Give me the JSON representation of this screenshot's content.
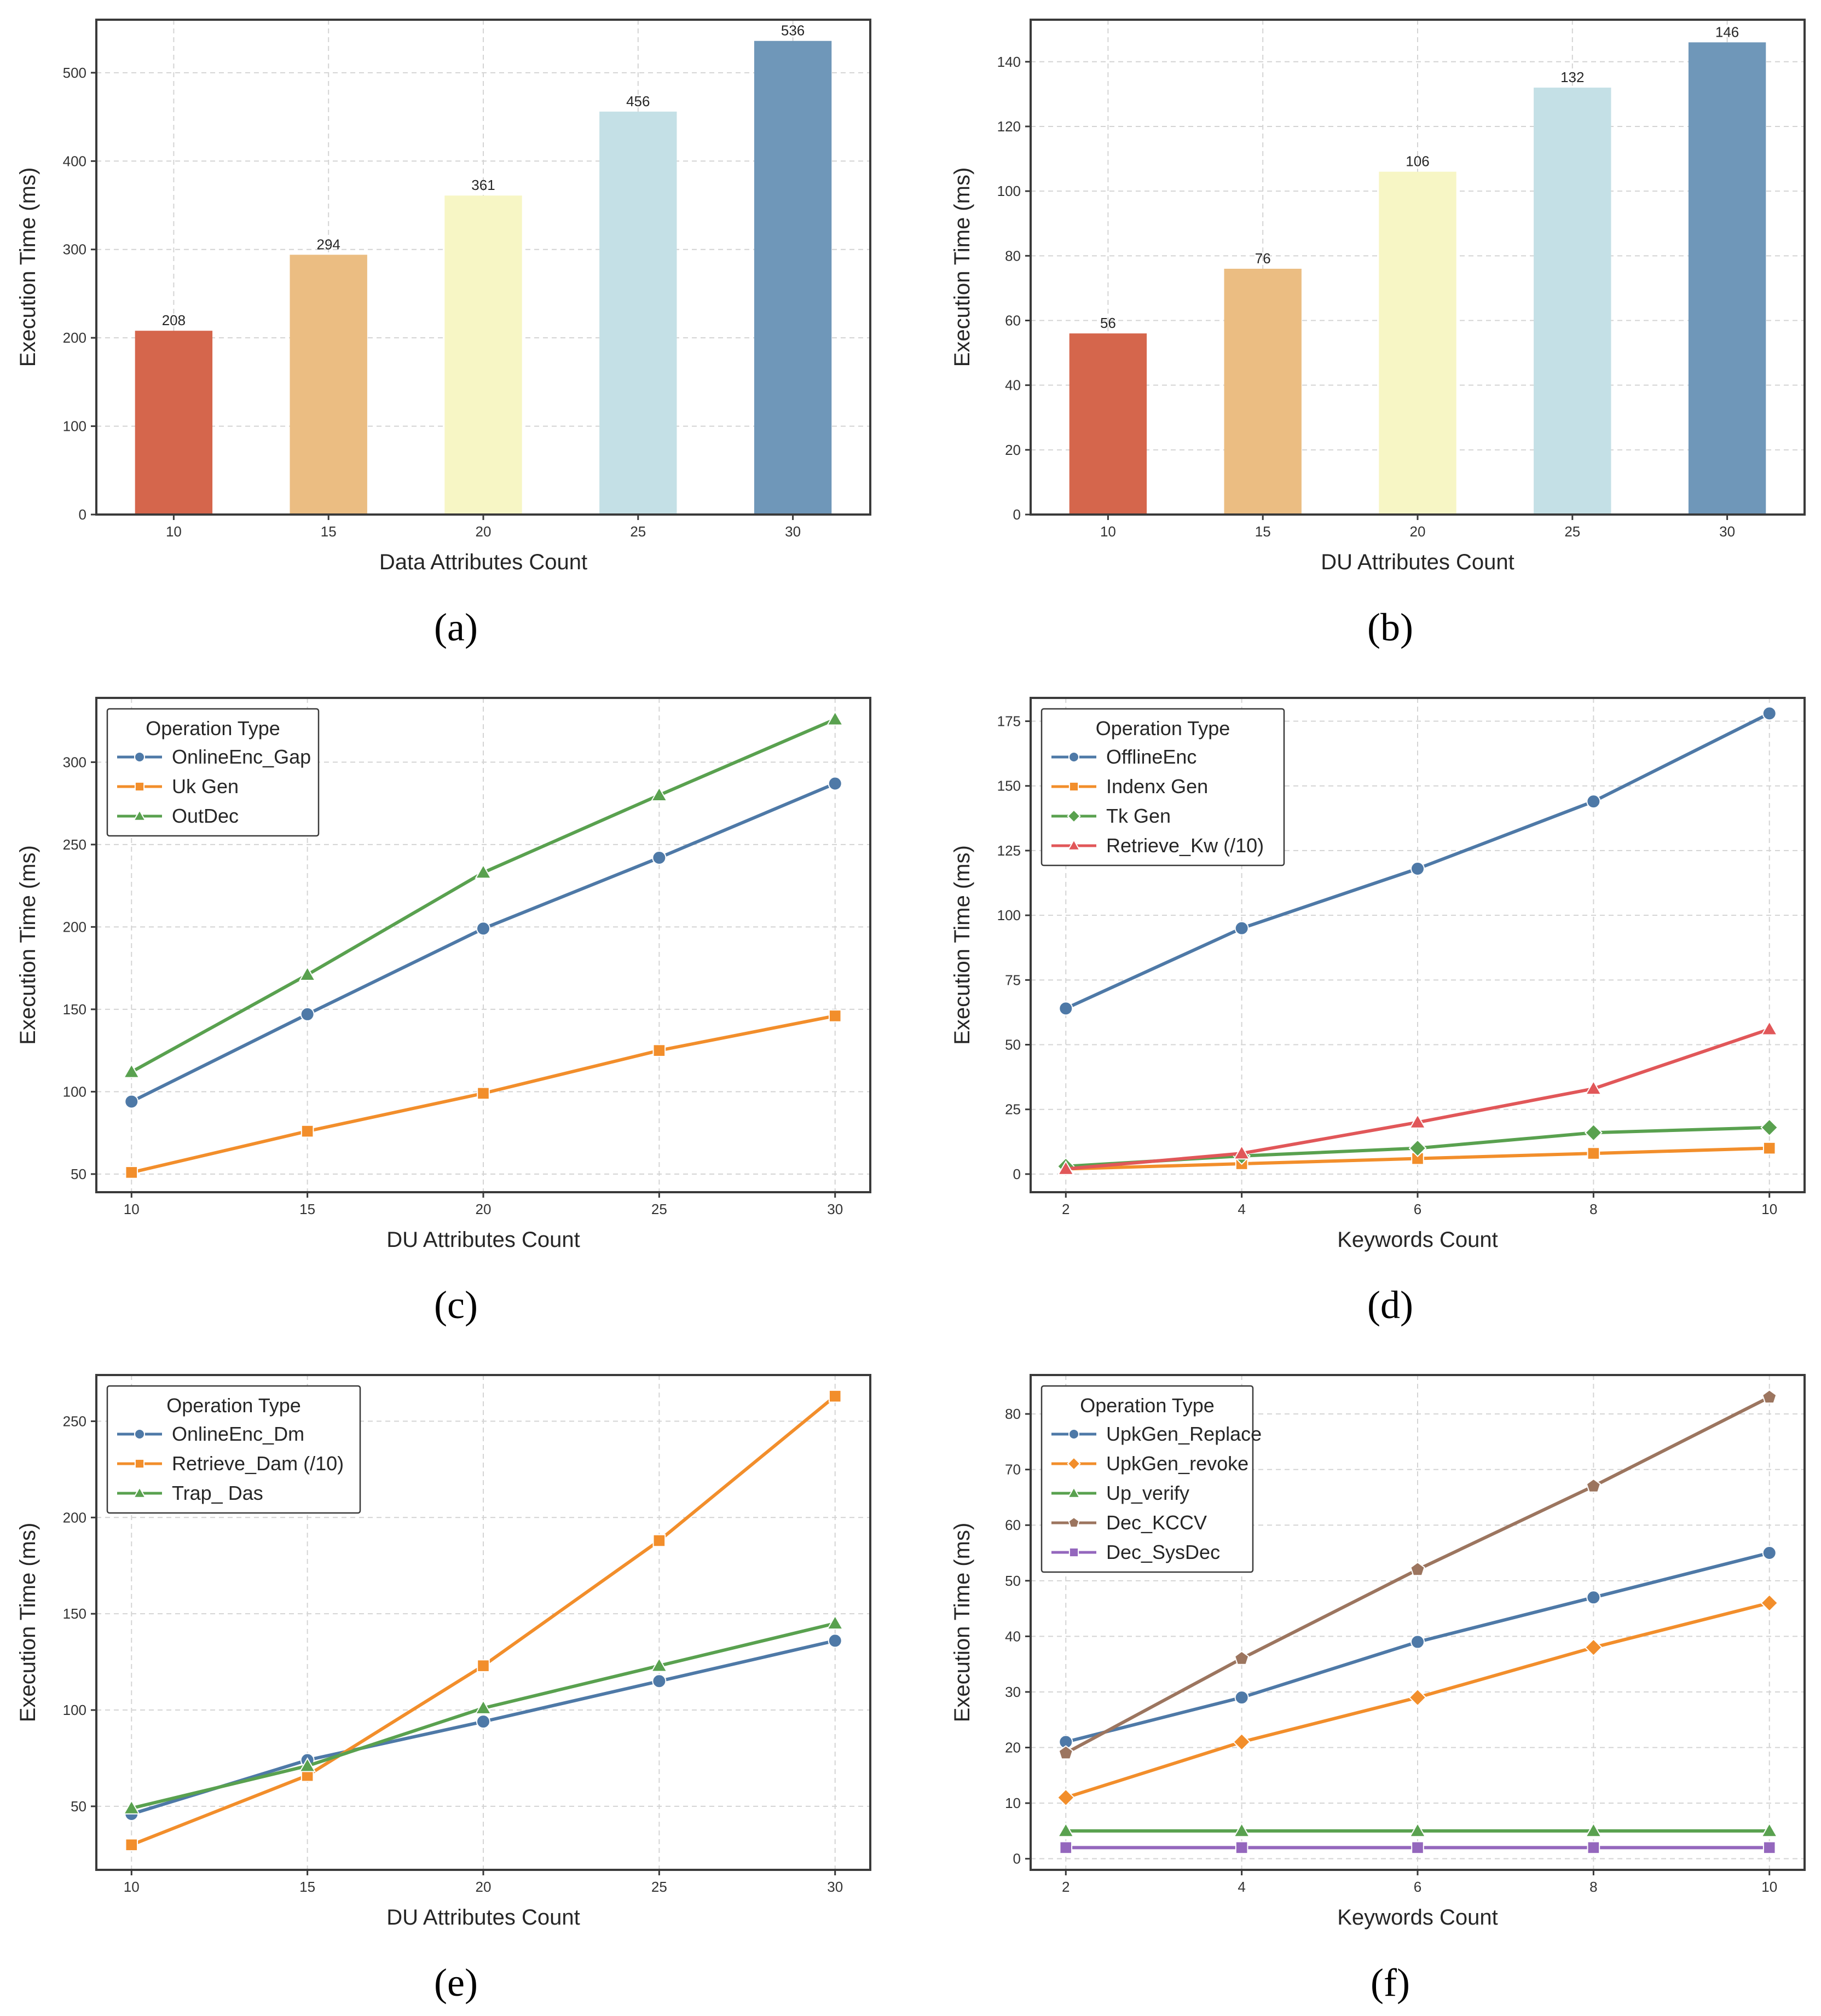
{
  "chart_data": [
    {
      "id": "a",
      "type": "bar",
      "caption": "(a)",
      "xlabel": "Data Attributes Count",
      "ylabel": "Execution Time (ms)",
      "categories": [
        "10",
        "15",
        "20",
        "25",
        "30"
      ],
      "values": [
        208,
        294,
        361,
        456,
        536
      ],
      "colors": [
        "#d5664c",
        "#ebbd82",
        "#f7f6c5",
        "#c4e0e6",
        "#6f97b9"
      ],
      "ylim": [
        0,
        560
      ],
      "yticks": [
        0,
        100,
        200,
        300,
        400,
        500
      ],
      "grid": true
    },
    {
      "id": "b",
      "type": "bar",
      "caption": "(b)",
      "xlabel": "DU Attributes Count",
      "ylabel": "Execution Time (ms)",
      "categories": [
        "10",
        "15",
        "20",
        "25",
        "30"
      ],
      "values": [
        56,
        76,
        106,
        132,
        146
      ],
      "colors": [
        "#d5664c",
        "#ebbd82",
        "#f7f6c5",
        "#c4e0e6",
        "#6f97b9"
      ],
      "ylim": [
        0,
        153
      ],
      "yticks": [
        0,
        20,
        40,
        60,
        80,
        100,
        120,
        140
      ],
      "grid": true
    },
    {
      "id": "c",
      "type": "line",
      "caption": "(c)",
      "xlabel": "DU Attributes Count",
      "ylabel": "Execution Time (ms)",
      "x": [
        10,
        15,
        20,
        25,
        30
      ],
      "xlim": [
        9,
        31
      ],
      "ylim": [
        39,
        339
      ],
      "yticks": [
        50,
        100,
        150,
        200,
        250,
        300
      ],
      "legend_title": "Operation Type",
      "legend_position": "top-left",
      "grid": true,
      "series": [
        {
          "name": "OnlineEnc_Gap",
          "values": [
            94,
            147,
            199,
            242,
            287
          ],
          "color": "#4e79a7",
          "marker": "circle"
        },
        {
          "name": "Uk Gen",
          "values": [
            51,
            76,
            99,
            125,
            146
          ],
          "color": "#f28e2b",
          "marker": "square"
        },
        {
          "name": "OutDec",
          "values": [
            112,
            171,
            233,
            280,
            326
          ],
          "color": "#59a14f",
          "marker": "triangle"
        }
      ]
    },
    {
      "id": "d",
      "type": "line",
      "caption": "(d)",
      "xlabel": "Keywords Count",
      "ylabel": "Execution Time (ms)",
      "x": [
        2,
        4,
        6,
        8,
        10
      ],
      "xlim": [
        1.6,
        10.4
      ],
      "ylim": [
        -7,
        184
      ],
      "yticks": [
        0,
        25,
        50,
        75,
        100,
        125,
        150,
        175
      ],
      "legend_title": "Operation Type",
      "legend_position": "top-left",
      "grid": true,
      "series": [
        {
          "name": "OfflineEnc",
          "values": [
            64,
            95,
            118,
            144,
            178
          ],
          "color": "#4e79a7",
          "marker": "circle"
        },
        {
          "name": "Indenx Gen",
          "values": [
            2,
            4,
            6,
            8,
            10
          ],
          "color": "#f28e2b",
          "marker": "square"
        },
        {
          "name": "Tk Gen",
          "values": [
            3,
            7,
            10,
            16,
            18
          ],
          "color": "#59a14f",
          "marker": "diamond"
        },
        {
          "name": "Retrieve_Kw (/10)",
          "values": [
            2,
            8,
            20,
            33,
            56
          ],
          "color": "#e15759",
          "marker": "triangle"
        }
      ]
    },
    {
      "id": "e",
      "type": "line",
      "caption": "(e)",
      "xlabel": "DU Attributes Count",
      "ylabel": "Execution Time (ms)",
      "x": [
        10,
        15,
        20,
        25,
        30
      ],
      "xlim": [
        9,
        31
      ],
      "ylim": [
        17,
        274
      ],
      "yticks": [
        50,
        100,
        150,
        200,
        250
      ],
      "legend_title": "Operation Type",
      "legend_position": "top-left",
      "grid": true,
      "series": [
        {
          "name": "OnlineEnc_Dm",
          "values": [
            46,
            74,
            94,
            115,
            136
          ],
          "color": "#4e79a7",
          "marker": "circle"
        },
        {
          "name": "Retrieve_Dam (/10)",
          "values": [
            30,
            66,
            123,
            188,
            263
          ],
          "color": "#f28e2b",
          "marker": "square"
        },
        {
          "name": "Trap_ Das",
          "values": [
            49,
            71,
            101,
            123,
            145
          ],
          "color": "#59a14f",
          "marker": "triangle"
        }
      ]
    },
    {
      "id": "f",
      "type": "line",
      "caption": "(f)",
      "xlabel": "Keywords Count",
      "ylabel": "Execution Time (ms)",
      "x": [
        2,
        4,
        6,
        8,
        10
      ],
      "xlim": [
        1.6,
        10.4
      ],
      "ylim": [
        -2,
        87
      ],
      "yticks": [
        0,
        10,
        20,
        30,
        40,
        50,
        60,
        70,
        80
      ],
      "legend_title": "Operation Type",
      "legend_position": "top-left",
      "grid": true,
      "series": [
        {
          "name": "UpkGen_Replace",
          "values": [
            21,
            29,
            39,
            47,
            55
          ],
          "color": "#4e79a7",
          "marker": "circle"
        },
        {
          "name": "UpkGen_revoke",
          "values": [
            11,
            21,
            29,
            38,
            46
          ],
          "color": "#f28e2b",
          "marker": "diamond"
        },
        {
          "name": "Up_verify",
          "values": [
            5,
            5,
            5,
            5,
            5
          ],
          "color": "#59a14f",
          "marker": "triangle"
        },
        {
          "name": "Dec_KCCV",
          "values": [
            19,
            36,
            52,
            67,
            83
          ],
          "color": "#9c755f",
          "marker": "pentagon"
        },
        {
          "name": "Dec_SysDec",
          "values": [
            2,
            2,
            2,
            2,
            2
          ],
          "color": "#9467bd",
          "marker": "square"
        }
      ]
    }
  ]
}
